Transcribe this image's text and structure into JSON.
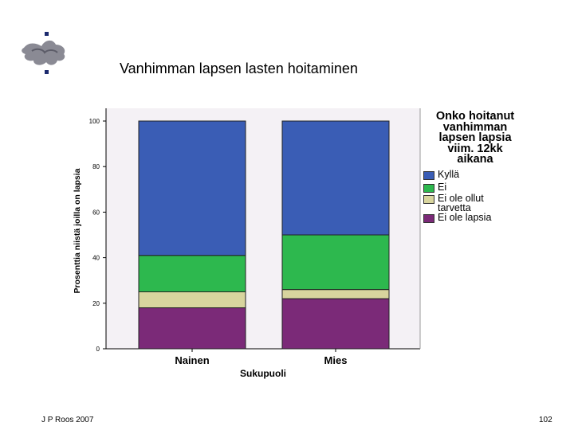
{
  "slide": {
    "title": "Vanhimman lapsen lasten hoitaminen",
    "footer_left": "J P Roos 2007",
    "footer_right": "102"
  },
  "colors": {
    "Kyllä": "#3a5db5",
    "Ei": "#2db84e",
    "Ei ole ollut tarvetta": "#d8d59e",
    "Ei ole lapsia": "#7b2a78",
    "plot_background": "#f4f1f5",
    "logo": "#7a7a88"
  },
  "logo": {
    "icon": "university-logo-icon"
  },
  "chart_data": {
    "type": "bar",
    "stacked": true,
    "categories": [
      "Nainen",
      "Mies"
    ],
    "series": [
      {
        "name": "Ei ole lapsia",
        "values": [
          18,
          22
        ]
      },
      {
        "name": "Ei ole ollut tarvetta",
        "values": [
          7,
          4
        ]
      },
      {
        "name": "Ei",
        "values": [
          16,
          24
        ]
      },
      {
        "name": "Kyllä",
        "values": [
          59,
          50
        ]
      }
    ],
    "title": "",
    "xlabel": "Sukupuoli",
    "ylabel": "Prosenttia niistä joilla on lapsia",
    "ylim": [
      0,
      100
    ],
    "yticks": [
      0,
      20,
      40,
      60,
      80,
      100
    ],
    "grid": false,
    "legend": {
      "title_lines": [
        "Onko hoitanut",
        "vanhimman",
        "lapsen lapsia",
        "viim. 12kk",
        "aikana"
      ],
      "placement": "right",
      "entries": [
        {
          "series": "Kyllä",
          "label_lines": [
            "Kyllä"
          ]
        },
        {
          "series": "Ei",
          "label_lines": [
            "Ei"
          ]
        },
        {
          "series": "Ei ole ollut tarvetta",
          "label_lines": [
            "Ei ole ollut",
            "tarvetta"
          ]
        },
        {
          "series": "Ei ole lapsia",
          "label_lines": [
            "Ei ole lapsia"
          ]
        }
      ]
    }
  }
}
